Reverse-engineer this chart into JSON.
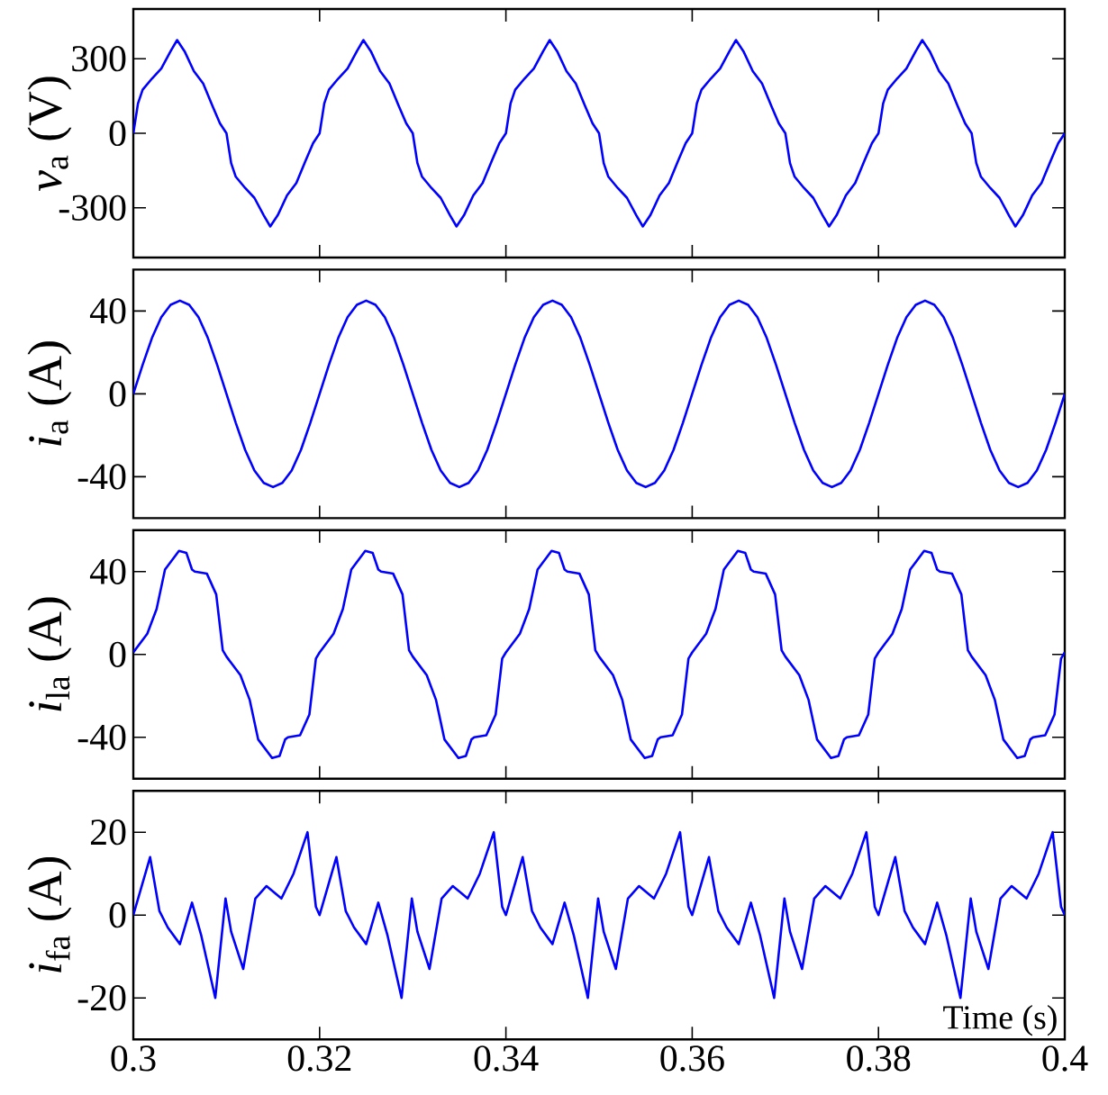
{
  "chart_data": [
    {
      "type": "line",
      "ylabel": "*v*$_{a}$ (V)",
      "xlim": [
        0.3,
        0.4
      ],
      "xticks": [
        0.3,
        0.32,
        0.34,
        0.36,
        0.38,
        0.4
      ],
      "ylim": [
        -500,
        500
      ],
      "yticks": [
        -300,
        0,
        300
      ],
      "tick_labels": "y",
      "x": [
        0.3,
        0.3005,
        0.301,
        0.302,
        0.303,
        0.304,
        0.3047,
        0.3055,
        0.3065,
        0.3075,
        0.3085,
        0.3093,
        0.31,
        0.3105,
        0.311,
        0.312,
        0.313,
        0.314,
        0.3147,
        0.3155,
        0.3165,
        0.3175,
        0.3185,
        0.3193,
        0.32,
        0.3205,
        0.321,
        0.322,
        0.323,
        0.324,
        0.3247,
        0.3255,
        0.3265,
        0.3275,
        0.3285,
        0.3293,
        0.33,
        0.3305,
        0.331,
        0.332,
        0.333,
        0.334,
        0.3347,
        0.3355,
        0.3365,
        0.3375,
        0.3385,
        0.3393,
        0.34,
        0.3405,
        0.341,
        0.342,
        0.343,
        0.344,
        0.3447,
        0.3455,
        0.3465,
        0.3475,
        0.3485,
        0.3493,
        0.35,
        0.3505,
        0.351,
        0.352,
        0.353,
        0.354,
        0.3547,
        0.3555,
        0.3565,
        0.3575,
        0.3585,
        0.3593,
        0.36,
        0.3605,
        0.361,
        0.362,
        0.363,
        0.364,
        0.3647,
        0.3655,
        0.3665,
        0.3675,
        0.3685,
        0.3693,
        0.37,
        0.3705,
        0.371,
        0.372,
        0.373,
        0.374,
        0.3747,
        0.3755,
        0.3765,
        0.3775,
        0.3785,
        0.3793,
        0.38,
        0.3805,
        0.381,
        0.382,
        0.383,
        0.384,
        0.3847,
        0.3855,
        0.3865,
        0.3875,
        0.3885,
        0.3893,
        0.39,
        0.3905,
        0.391,
        0.392,
        0.393,
        0.394,
        0.3947,
        0.3955,
        0.3965,
        0.3975,
        0.3985,
        0.3993,
        0.4
      ],
      "series": [
        {
          "color": "#0000ff",
          "values": [
            0,
            120,
            175,
            220,
            260,
            330,
            375,
            330,
            250,
            200,
            110,
            40,
            0,
            -120,
            -175,
            -220,
            -260,
            -330,
            -375,
            -330,
            -250,
            -200,
            -110,
            -40,
            0,
            120,
            175,
            220,
            260,
            330,
            375,
            330,
            250,
            200,
            110,
            40,
            0,
            -120,
            -175,
            -220,
            -260,
            -330,
            -375,
            -330,
            -250,
            -200,
            -110,
            -40,
            0,
            120,
            175,
            220,
            260,
            330,
            375,
            330,
            250,
            200,
            110,
            40,
            0,
            -120,
            -175,
            -220,
            -260,
            -330,
            -375,
            -330,
            -250,
            -200,
            -110,
            -40,
            0,
            120,
            175,
            220,
            260,
            330,
            375,
            330,
            250,
            200,
            110,
            40,
            0,
            -120,
            -175,
            -220,
            -260,
            -330,
            -375,
            -330,
            -250,
            -200,
            -110,
            -40,
            0,
            120,
            175,
            220,
            260,
            330,
            375,
            330,
            250,
            200,
            110,
            40,
            0,
            -120,
            -175,
            -220,
            -260,
            -330,
            -375,
            -330,
            -250,
            -200,
            -110,
            -40,
            0
          ]
        }
      ]
    },
    {
      "type": "line",
      "ylabel": "*i*$_{a}$ (A)",
      "xlim": [
        0.3,
        0.4
      ],
      "xticks": [
        0.3,
        0.32,
        0.34,
        0.36,
        0.38,
        0.4
      ],
      "ylim": [
        -60,
        60
      ],
      "yticks": [
        -40,
        0,
        40
      ],
      "tick_labels": "y",
      "x": [
        0.3,
        0.301,
        0.302,
        0.303,
        0.304,
        0.305,
        0.306,
        0.307,
        0.308,
        0.309,
        0.31,
        0.311,
        0.312,
        0.313,
        0.314,
        0.315,
        0.316,
        0.317,
        0.318,
        0.319,
        0.32,
        0.321,
        0.322,
        0.323,
        0.324,
        0.325,
        0.326,
        0.327,
        0.328,
        0.329,
        0.33,
        0.331,
        0.332,
        0.333,
        0.334,
        0.335,
        0.336,
        0.337,
        0.338,
        0.339,
        0.34,
        0.341,
        0.342,
        0.343,
        0.344,
        0.345,
        0.346,
        0.347,
        0.348,
        0.349,
        0.35,
        0.351,
        0.352,
        0.353,
        0.354,
        0.355,
        0.356,
        0.357,
        0.358,
        0.359,
        0.36,
        0.361,
        0.362,
        0.363,
        0.364,
        0.365,
        0.366,
        0.367,
        0.368,
        0.369,
        0.37,
        0.371,
        0.372,
        0.373,
        0.374,
        0.375,
        0.376,
        0.377,
        0.378,
        0.379,
        0.38,
        0.381,
        0.382,
        0.383,
        0.384,
        0.385,
        0.386,
        0.387,
        0.388,
        0.389,
        0.39,
        0.391,
        0.392,
        0.393,
        0.394,
        0.395,
        0.396,
        0.397,
        0.398,
        0.399,
        0.4
      ],
      "series": [
        {
          "color": "#0000ff",
          "values": [
            0,
            14,
            27,
            37,
            43,
            45,
            43,
            37,
            27,
            14,
            0,
            -14,
            -27,
            -37,
            -43,
            -45,
            -43,
            -37,
            -27,
            -14,
            0,
            14,
            27,
            37,
            43,
            45,
            43,
            37,
            27,
            14,
            0,
            -14,
            -27,
            -37,
            -43,
            -45,
            -43,
            -37,
            -27,
            -14,
            0,
            14,
            27,
            37,
            43,
            45,
            43,
            37,
            27,
            14,
            0,
            -14,
            -27,
            -37,
            -43,
            -45,
            -43,
            -37,
            -27,
            -14,
            0,
            14,
            27,
            37,
            43,
            45,
            43,
            37,
            27,
            14,
            0,
            -14,
            -27,
            -37,
            -43,
            -45,
            -43,
            -37,
            -27,
            -14,
            0,
            14,
            27,
            37,
            43,
            45,
            43,
            37,
            27,
            14,
            0,
            -14,
            -27,
            -37,
            -43,
            -45,
            -43,
            -37,
            -27,
            -14,
            0
          ]
        }
      ]
    },
    {
      "type": "line",
      "ylabel": "*i*$_{la}$ (A)",
      "xlim": [
        0.3,
        0.4
      ],
      "xticks": [
        0.3,
        0.32,
        0.34,
        0.36,
        0.38,
        0.4
      ],
      "ylim": [
        -60,
        60
      ],
      "yticks": [
        -40,
        0,
        40
      ],
      "tick_labels": "y",
      "x": [
        0.3,
        0.3015,
        0.3025,
        0.3034,
        0.3049,
        0.3057,
        0.3063,
        0.3066,
        0.3079,
        0.3089,
        0.3096,
        0.31,
        0.3115,
        0.3125,
        0.3134,
        0.3149,
        0.3157,
        0.3163,
        0.3166,
        0.3179,
        0.3189,
        0.3196,
        0.32,
        0.3215,
        0.3225,
        0.3234,
        0.3249,
        0.3257,
        0.3263,
        0.3266,
        0.3279,
        0.3289,
        0.3296,
        0.33,
        0.3315,
        0.3325,
        0.3334,
        0.3349,
        0.3357,
        0.3363,
        0.3366,
        0.3379,
        0.3389,
        0.3396,
        0.34,
        0.3415,
        0.3425,
        0.3434,
        0.3449,
        0.3457,
        0.3463,
        0.3466,
        0.3479,
        0.3489,
        0.3496,
        0.35,
        0.3515,
        0.3525,
        0.3534,
        0.3549,
        0.3557,
        0.3563,
        0.3566,
        0.3579,
        0.3589,
        0.3596,
        0.36,
        0.3615,
        0.3625,
        0.3634,
        0.3649,
        0.3657,
        0.3663,
        0.3666,
        0.3679,
        0.3689,
        0.3696,
        0.37,
        0.3715,
        0.3725,
        0.3734,
        0.3749,
        0.3757,
        0.3763,
        0.3766,
        0.3779,
        0.3789,
        0.3796,
        0.38,
        0.3815,
        0.3825,
        0.3834,
        0.3849,
        0.3857,
        0.3863,
        0.3866,
        0.3879,
        0.3889,
        0.3896,
        0.39,
        0.3915,
        0.3925,
        0.3934,
        0.3949,
        0.3957,
        0.3963,
        0.3966,
        0.3979,
        0.3989,
        0.3996,
        0.4
      ],
      "series": [
        {
          "color": "#0000ff",
          "values": [
            1,
            10,
            22,
            41,
            50,
            49,
            41,
            40,
            39,
            29,
            2,
            -1,
            -10,
            -22,
            -41,
            -50,
            -49,
            -41,
            -40,
            -39,
            -29,
            -2,
            1,
            10,
            22,
            41,
            50,
            49,
            41,
            40,
            39,
            29,
            2,
            -1,
            -10,
            -22,
            -41,
            -50,
            -49,
            -41,
            -40,
            -39,
            -29,
            -2,
            1,
            10,
            22,
            41,
            50,
            49,
            41,
            40,
            39,
            29,
            2,
            -1,
            -10,
            -22,
            -41,
            -50,
            -49,
            -41,
            -40,
            -39,
            -29,
            -2,
            1,
            10,
            22,
            41,
            50,
            49,
            41,
            40,
            39,
            29,
            2,
            -1,
            -10,
            -22,
            -41,
            -50,
            -49,
            -41,
            -40,
            -39,
            -29,
            -2,
            1,
            10,
            22,
            41,
            50,
            49,
            41,
            40,
            39,
            29,
            2,
            -1,
            -10,
            -22,
            -41,
            -50,
            -49,
            -41,
            -40,
            -39,
            -29,
            -2,
            1
          ]
        }
      ]
    },
    {
      "type": "line",
      "ylabel": "*i*$_{fa}$ (A)",
      "xlabel": "Time (s)",
      "xlim": [
        0.3,
        0.4
      ],
      "xticks": [
        0.3,
        0.32,
        0.34,
        0.36,
        0.38,
        0.4
      ],
      "ylim": [
        -30,
        30
      ],
      "yticks": [
        -20,
        0,
        20
      ],
      "x": [
        0.3,
        0.3018,
        0.3028,
        0.3037,
        0.305,
        0.3063,
        0.3073,
        0.3088,
        0.3099,
        0.3105,
        0.3118,
        0.3131,
        0.3143,
        0.3159,
        0.3172,
        0.3187,
        0.3196,
        0.32,
        0.3218,
        0.3228,
        0.3237,
        0.325,
        0.3263,
        0.3273,
        0.3288,
        0.3299,
        0.3305,
        0.3318,
        0.3331,
        0.3343,
        0.3359,
        0.3372,
        0.3387,
        0.3396,
        0.34,
        0.3418,
        0.3428,
        0.3437,
        0.345,
        0.3463,
        0.3473,
        0.3488,
        0.3499,
        0.3505,
        0.3518,
        0.3531,
        0.3543,
        0.3559,
        0.3572,
        0.3587,
        0.3596,
        0.36,
        0.3618,
        0.3628,
        0.3637,
        0.365,
        0.3663,
        0.3673,
        0.3688,
        0.3699,
        0.3705,
        0.3718,
        0.3731,
        0.3743,
        0.3759,
        0.3772,
        0.3787,
        0.3796,
        0.38,
        0.3818,
        0.3828,
        0.3837,
        0.385,
        0.3863,
        0.3873,
        0.3888,
        0.3899,
        0.3905,
        0.3918,
        0.3931,
        0.3943,
        0.3959,
        0.3972,
        0.3987,
        0.3996,
        0.4
      ],
      "series": [
        {
          "color": "#0000ff",
          "values": [
            0,
            14,
            1,
            -3,
            -7,
            3,
            -5,
            -20,
            4,
            -4,
            -13,
            4,
            7,
            4,
            10,
            20,
            2,
            0,
            14,
            1,
            -3,
            -7,
            3,
            -5,
            -20,
            4,
            -4,
            -13,
            4,
            7,
            4,
            10,
            20,
            2,
            0,
            14,
            1,
            -3,
            -7,
            3,
            -5,
            -20,
            4,
            -4,
            -13,
            4,
            7,
            4,
            10,
            20,
            2,
            0,
            14,
            1,
            -3,
            -7,
            3,
            -5,
            -20,
            4,
            -4,
            -13,
            4,
            7,
            4,
            10,
            20,
            2,
            0,
            14,
            1,
            -3,
            -7,
            3,
            -5,
            -20,
            4,
            -4,
            -13,
            4,
            7,
            4,
            10,
            20,
            2,
            0
          ]
        }
      ]
    }
  ]
}
